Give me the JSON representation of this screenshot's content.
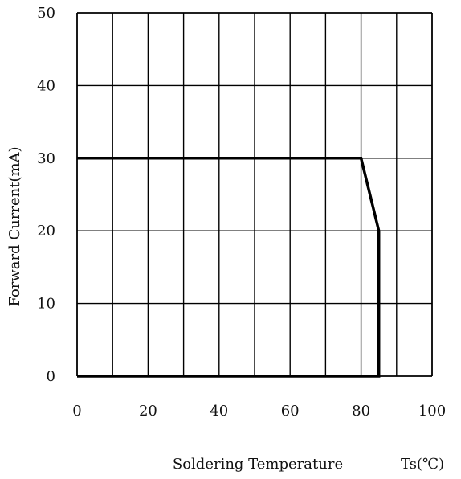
{
  "chart_data": {
    "type": "line",
    "title": "",
    "xlabel": "Soldering Temperature",
    "xunit": "Ts(℃)",
    "ylabel": "Forward Current(mA)",
    "xlim": [
      0,
      100
    ],
    "ylim": [
      0,
      50
    ],
    "x_ticks": [
      0,
      20,
      40,
      60,
      80,
      100
    ],
    "y_ticks": [
      0,
      10,
      20,
      30,
      40,
      50
    ],
    "x_tick_labels": [
      "0",
      "20",
      "40",
      "60",
      "80",
      "100"
    ],
    "y_tick_labels": [
      "0",
      "10",
      "20",
      "30",
      "40",
      "50"
    ],
    "grid": true,
    "x_grid_step": 10,
    "y_grid_step": 10,
    "series": [
      {
        "x": [
          0,
          80,
          85,
          85,
          0
        ],
        "y": [
          30,
          30,
          20,
          0,
          0
        ]
      }
    ],
    "colors": {
      "line": "#000000",
      "grid": "#000000"
    }
  }
}
